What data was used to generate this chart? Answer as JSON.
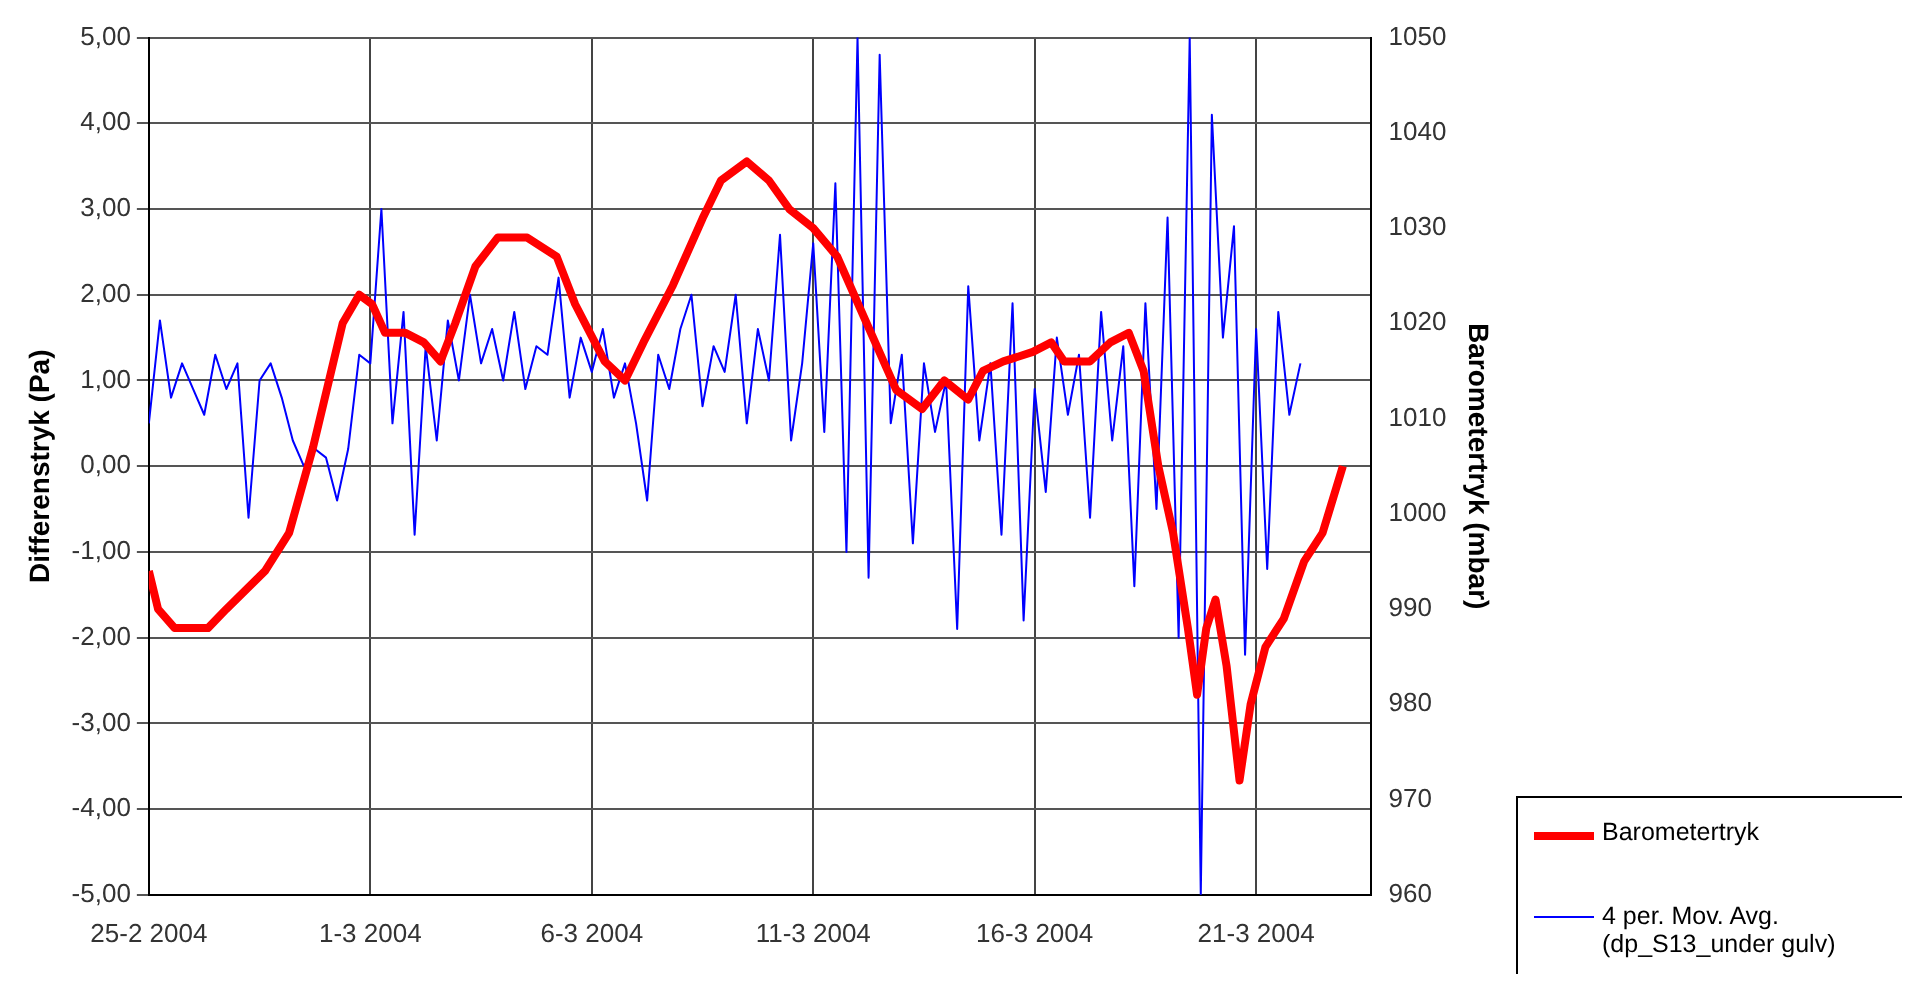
{
  "chart_data": {
    "type": "line",
    "ylabel": "Differenstryk (Pa)",
    "y2label": "Barometertryk (mbar)",
    "xlim": [
      "2004-02-25T00:00",
      "2004-03-23T14:00"
    ],
    "xticks": [
      {
        "value": "2004-02-25T00:00",
        "label": "25-2 2004"
      },
      {
        "value": "2004-03-01T00:00",
        "label": "1-3 2004"
      },
      {
        "value": "2004-03-06T00:00",
        "label": "6-3 2004"
      },
      {
        "value": "2004-03-11T00:00",
        "label": "11-3 2004"
      },
      {
        "value": "2004-03-16T00:00",
        "label": "16-3 2004"
      },
      {
        "value": "2004-03-21T00:00",
        "label": "21-3 2004"
      }
    ],
    "ylim": [
      -5,
      5
    ],
    "yticks": [
      {
        "value": -5,
        "label": "-5,00"
      },
      {
        "value": -4,
        "label": "-4,00"
      },
      {
        "value": -3,
        "label": "-3,00"
      },
      {
        "value": -2,
        "label": "-2,00"
      },
      {
        "value": -1,
        "label": "-1,00"
      },
      {
        "value": 0,
        "label": "0,00"
      },
      {
        "value": 1,
        "label": "1,00"
      },
      {
        "value": 2,
        "label": "2,00"
      },
      {
        "value": 3,
        "label": "3,00"
      },
      {
        "value": 4,
        "label": "4,00"
      },
      {
        "value": 5,
        "label": "5,00"
      }
    ],
    "y2lim": [
      960,
      1050
    ],
    "y2ticks": [
      960,
      970,
      980,
      990,
      1000,
      1010,
      1020,
      1030,
      1040,
      1050
    ],
    "grid": true,
    "legend": "bottom right",
    "marker": "none",
    "series": [
      {
        "name": "Barometertryk",
        "color": "#ff0000",
        "axis": "y2",
        "x": [
          "2004-02-25T00:00",
          "2004-02-25T05:00",
          "2004-02-25T14:00",
          "2004-02-26T08:00",
          "2004-02-26T18:00",
          "2004-02-27T15:00",
          "2004-02-28T04:00",
          "2004-02-28T17:00",
          "2004-02-29T09:00",
          "2004-02-29T18:00",
          "2004-03-01T01:00",
          "2004-03-01T08:00",
          "2004-03-01T19:00",
          "2004-03-02T05:00",
          "2004-03-02T14:00",
          "2004-03-02T22:00",
          "2004-03-03T09:00",
          "2004-03-03T21:00",
          "2004-03-04T13:00",
          "2004-03-05T05:00",
          "2004-03-05T15:00",
          "2004-03-06T07:00",
          "2004-03-06T18:00",
          "2004-03-07T04:00",
          "2004-03-07T20:00",
          "2004-03-08T12:00",
          "2004-03-08T22:00",
          "2004-03-09T12:00",
          "2004-03-10T00:00",
          "2004-03-10T11:00",
          "2004-03-11T00:00",
          "2004-03-11T13:00",
          "2004-03-12T05:00",
          "2004-03-12T21:00",
          "2004-03-13T11:00",
          "2004-03-13T23:00",
          "2004-03-14T12:00",
          "2004-03-14T20:00",
          "2004-03-15T07:00",
          "2004-03-15T23:00",
          "2004-03-16T09:00",
          "2004-03-16T16:00",
          "2004-03-17T06:00",
          "2004-03-17T17:00",
          "2004-03-18T03:00",
          "2004-03-18T11:00",
          "2004-03-18T19:00",
          "2004-03-19T03:00",
          "2004-03-19T11:00",
          "2004-03-19T16:00",
          "2004-03-19T21:00",
          "2004-03-20T02:00",
          "2004-03-20T08:00",
          "2004-03-20T15:00",
          "2004-03-20T21:00",
          "2004-03-21T05:00",
          "2004-03-21T15:00",
          "2004-03-22T02:00",
          "2004-03-22T12:00",
          "2004-03-22T23:00"
        ],
        "values": [
          994,
          990,
          988,
          988,
          990,
          994,
          998,
          1007,
          1020,
          1023,
          1022,
          1019,
          1019,
          1018,
          1016,
          1020,
          1026,
          1029,
          1029,
          1027,
          1022,
          1016,
          1014,
          1018,
          1024,
          1031,
          1035,
          1037,
          1035,
          1032,
          1030,
          1027,
          1020,
          1013,
          1011,
          1014,
          1012,
          1015,
          1016,
          1017,
          1018,
          1016,
          1016,
          1018,
          1019,
          1015,
          1005,
          998,
          988,
          981,
          988,
          991,
          984,
          972,
          980,
          986,
          989,
          995,
          998,
          1005
        ]
      },
      {
        "name": "4 per. Mov. Avg. (dp_S13_under gulv)",
        "color": "#0000ff",
        "x": [
          "2004-02-25T00:00",
          "2004-02-25T06:00",
          "2004-02-25T12:00",
          "2004-02-25T18:00",
          "2004-02-26T00:00",
          "2004-02-26T06:00",
          "2004-02-26T12:00",
          "2004-02-26T18:00",
          "2004-02-27T00:00",
          "2004-02-27T06:00",
          "2004-02-27T12:00",
          "2004-02-27T18:00",
          "2004-02-28T00:00",
          "2004-02-28T06:00",
          "2004-02-28T12:00",
          "2004-02-28T18:00",
          "2004-02-29T00:00",
          "2004-02-29T06:00",
          "2004-02-29T12:00",
          "2004-02-29T18:00",
          "2004-03-01T00:00",
          "2004-03-01T06:00",
          "2004-03-01T12:00",
          "2004-03-01T18:00",
          "2004-03-02T00:00",
          "2004-03-02T06:00",
          "2004-03-02T12:00",
          "2004-03-02T18:00",
          "2004-03-03T00:00",
          "2004-03-03T06:00",
          "2004-03-03T12:00",
          "2004-03-03T18:00",
          "2004-03-04T00:00",
          "2004-03-04T06:00",
          "2004-03-04T12:00",
          "2004-03-04T18:00",
          "2004-03-05T00:00",
          "2004-03-05T06:00",
          "2004-03-05T12:00",
          "2004-03-05T18:00",
          "2004-03-06T00:00",
          "2004-03-06T06:00",
          "2004-03-06T12:00",
          "2004-03-06T18:00",
          "2004-03-07T00:00",
          "2004-03-07T06:00",
          "2004-03-07T12:00",
          "2004-03-07T18:00",
          "2004-03-08T00:00",
          "2004-03-08T06:00",
          "2004-03-08T12:00",
          "2004-03-08T18:00",
          "2004-03-09T00:00",
          "2004-03-09T06:00",
          "2004-03-09T12:00",
          "2004-03-09T18:00",
          "2004-03-10T00:00",
          "2004-03-10T06:00",
          "2004-03-10T12:00",
          "2004-03-10T18:00",
          "2004-03-11T00:00",
          "2004-03-11T06:00",
          "2004-03-11T12:00",
          "2004-03-11T18:00",
          "2004-03-12T00:00",
          "2004-03-12T06:00",
          "2004-03-12T12:00",
          "2004-03-12T18:00",
          "2004-03-13T00:00",
          "2004-03-13T06:00",
          "2004-03-13T12:00",
          "2004-03-13T18:00",
          "2004-03-14T00:00",
          "2004-03-14T06:00",
          "2004-03-14T12:00",
          "2004-03-14T18:00",
          "2004-03-15T00:00",
          "2004-03-15T06:00",
          "2004-03-15T12:00",
          "2004-03-15T18:00",
          "2004-03-16T00:00",
          "2004-03-16T06:00",
          "2004-03-16T12:00",
          "2004-03-16T18:00",
          "2004-03-17T00:00",
          "2004-03-17T06:00",
          "2004-03-17T12:00",
          "2004-03-17T18:00",
          "2004-03-18T00:00",
          "2004-03-18T06:00",
          "2004-03-18T12:00",
          "2004-03-18T18:00",
          "2004-03-19T00:00",
          "2004-03-19T06:00",
          "2004-03-19T12:00",
          "2004-03-19T18:00",
          "2004-03-20T00:00",
          "2004-03-20T06:00",
          "2004-03-20T12:00",
          "2004-03-20T18:00",
          "2004-03-21T00:00",
          "2004-03-21T06:00",
          "2004-03-21T12:00",
          "2004-03-21T18:00",
          "2004-03-22T00:00"
        ],
        "values": [
          0.5,
          1.7,
          0.8,
          1.2,
          0.9,
          0.6,
          1.3,
          0.9,
          1.2,
          -0.6,
          1.0,
          1.2,
          0.8,
          0.3,
          0.0,
          0.2,
          0.1,
          -0.4,
          0.2,
          1.3,
          1.2,
          3.0,
          0.5,
          1.8,
          -0.8,
          1.4,
          0.3,
          1.7,
          1.0,
          2.0,
          1.2,
          1.6,
          1.0,
          1.8,
          0.9,
          1.4,
          1.3,
          2.2,
          0.8,
          1.5,
          1.1,
          1.6,
          0.8,
          1.2,
          0.5,
          -0.4,
          1.3,
          0.9,
          1.6,
          2.0,
          0.7,
          1.4,
          1.1,
          2.0,
          0.5,
          1.6,
          1.0,
          2.7,
          0.3,
          1.2,
          2.6,
          0.4,
          3.3,
          -1.0,
          5.0,
          -1.3,
          4.8,
          0.5,
          1.3,
          -0.9,
          1.2,
          0.4,
          1.0,
          -1.9,
          2.1,
          0.3,
          1.2,
          -0.8,
          1.9,
          -1.8,
          0.9,
          -0.3,
          1.5,
          0.6,
          1.3,
          -0.6,
          1.8,
          0.3,
          1.4,
          -1.4,
          1.9,
          -0.5,
          2.9,
          -2.0,
          5.0,
          -5.0,
          4.1,
          1.5,
          2.8,
          -2.2,
          1.6,
          -1.2,
          1.8,
          0.6,
          1.2
        ]
      }
    ]
  }
}
